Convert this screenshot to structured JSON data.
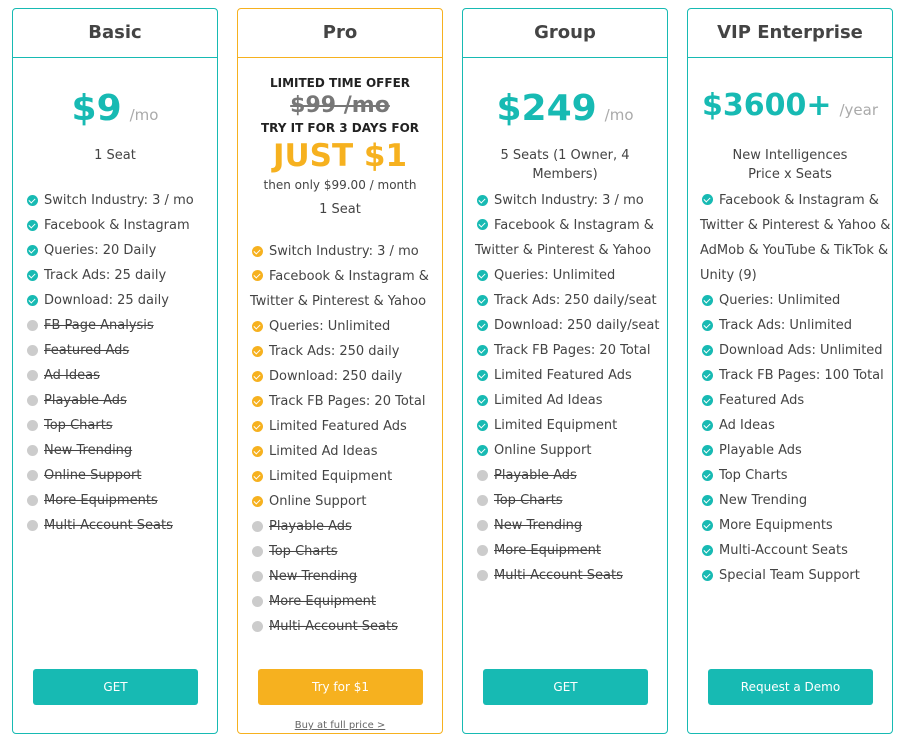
{
  "basic": {
    "title": "Basic",
    "price": "$9",
    "period": "/mo",
    "seats": "1 Seat",
    "features": [
      {
        "text": "Switch Industry: 3 / mo",
        "state": "on"
      },
      {
        "text": "Facebook & Instagram",
        "state": "on"
      },
      {
        "text": "Queries: 20 Daily",
        "state": "on"
      },
      {
        "text": "Track Ads: 25 daily",
        "state": "on"
      },
      {
        "text": "Download: 25 daily",
        "state": "on"
      },
      {
        "text": "FB Page Analysis",
        "state": "off"
      },
      {
        "text": "Featured Ads",
        "state": "off"
      },
      {
        "text": "Ad Ideas",
        "state": "off"
      },
      {
        "text": "Playable Ads",
        "state": "off"
      },
      {
        "text": "Top Charts",
        "state": "off"
      },
      {
        "text": "New Trending",
        "state": "off"
      },
      {
        "text": "Online Support",
        "state": "off"
      },
      {
        "text": "More Equipments",
        "state": "off"
      },
      {
        "text": "Multi-Account Seats",
        "state": "off"
      }
    ],
    "button": "GET"
  },
  "pro": {
    "title": "Pro",
    "offer": "LIMITED TIME OFFER",
    "old_price": "$99 /mo",
    "try_text": "TRY IT FOR 3 DAYS FOR",
    "just": "JUST $1",
    "then": "then only $99.00 / month",
    "seats": "1 Seat",
    "features": [
      {
        "text": "Switch Industry: 3 / mo",
        "state": "on"
      },
      {
        "text": "Facebook & Instagram & Twitter & Pinterest & Yahoo",
        "state": "hl"
      },
      {
        "text": "Queries: Unlimited",
        "state": "on"
      },
      {
        "text": "Track Ads: 250 daily",
        "state": "on"
      },
      {
        "text": "Download: 250 daily",
        "state": "on"
      },
      {
        "text": "Track FB Pages: 20 Total",
        "state": "on"
      },
      {
        "text": "Limited Featured Ads",
        "state": "on"
      },
      {
        "text": "Limited Ad Ideas",
        "state": "on"
      },
      {
        "text": "Limited Equipment",
        "state": "on"
      },
      {
        "text": "Online Support",
        "state": "on"
      },
      {
        "text": "Playable Ads",
        "state": "off"
      },
      {
        "text": "Top Charts",
        "state": "off"
      },
      {
        "text": "New Trending",
        "state": "off"
      },
      {
        "text": "More Equipment",
        "state": "off"
      },
      {
        "text": "Multi-Account Seats",
        "state": "off"
      }
    ],
    "button": "Try for $1",
    "link": "Buy at full price >"
  },
  "group": {
    "title": "Group",
    "price": "$249",
    "period": "/mo",
    "seats": "5 Seats (1 Owner, 4 Members)",
    "features": [
      {
        "text": "Switch Industry: 3 / mo",
        "state": "on"
      },
      {
        "text": "Facebook & Instagram & Twitter & Pinterest & Yahoo",
        "state": "hl"
      },
      {
        "text": "Queries: Unlimited",
        "state": "on"
      },
      {
        "text": "Track Ads: 250 daily/seat",
        "state": "on"
      },
      {
        "text": "Download: 250 daily/seat",
        "state": "on"
      },
      {
        "text": "Track FB Pages: 20 Total",
        "state": "on"
      },
      {
        "text": "Limited Featured Ads",
        "state": "on"
      },
      {
        "text": "Limited Ad Ideas",
        "state": "on"
      },
      {
        "text": "Limited Equipment",
        "state": "on"
      },
      {
        "text": "Online Support",
        "state": "on"
      },
      {
        "text": "Playable Ads",
        "state": "off"
      },
      {
        "text": "Top Charts",
        "state": "off"
      },
      {
        "text": "New Trending",
        "state": "off"
      },
      {
        "text": "More Equipment",
        "state": "off"
      },
      {
        "text": "Multi-Account Seats",
        "state": "off"
      }
    ],
    "button": "GET"
  },
  "vip": {
    "title": "VIP Enterprise",
    "price": "$3600+",
    "period": "/year",
    "seats": "New Intelligences Price x Seats",
    "features": [
      {
        "text": "Facebook & Instagram & Twitter & Pinterest & Yahoo & AdMob & YouTube & TikTok & Unity  (9)",
        "state": "hl"
      },
      {
        "text": "Queries: Unlimited",
        "state": "on"
      },
      {
        "text": "Track Ads: Unlimited",
        "state": "on"
      },
      {
        "text": "Download Ads: Unlimited",
        "state": "on"
      },
      {
        "text": "Track FB Pages: 100 Total",
        "state": "on"
      },
      {
        "text": "Featured Ads",
        "state": "on"
      },
      {
        "text": "Ad Ideas",
        "state": "on"
      },
      {
        "text": "Playable Ads",
        "state": "on"
      },
      {
        "text": "Top Charts",
        "state": "on"
      },
      {
        "text": "New Trending",
        "state": "on"
      },
      {
        "text": "More Equipments",
        "state": "on"
      },
      {
        "text": "Multi-Account Seats",
        "state": "on"
      },
      {
        "text": "Special Team Support",
        "state": "on"
      }
    ],
    "button": "Request a Demo"
  },
  "colors": {
    "teal": "#17bab3",
    "orange": "#f6b11f",
    "gray": "#cccccc"
  }
}
